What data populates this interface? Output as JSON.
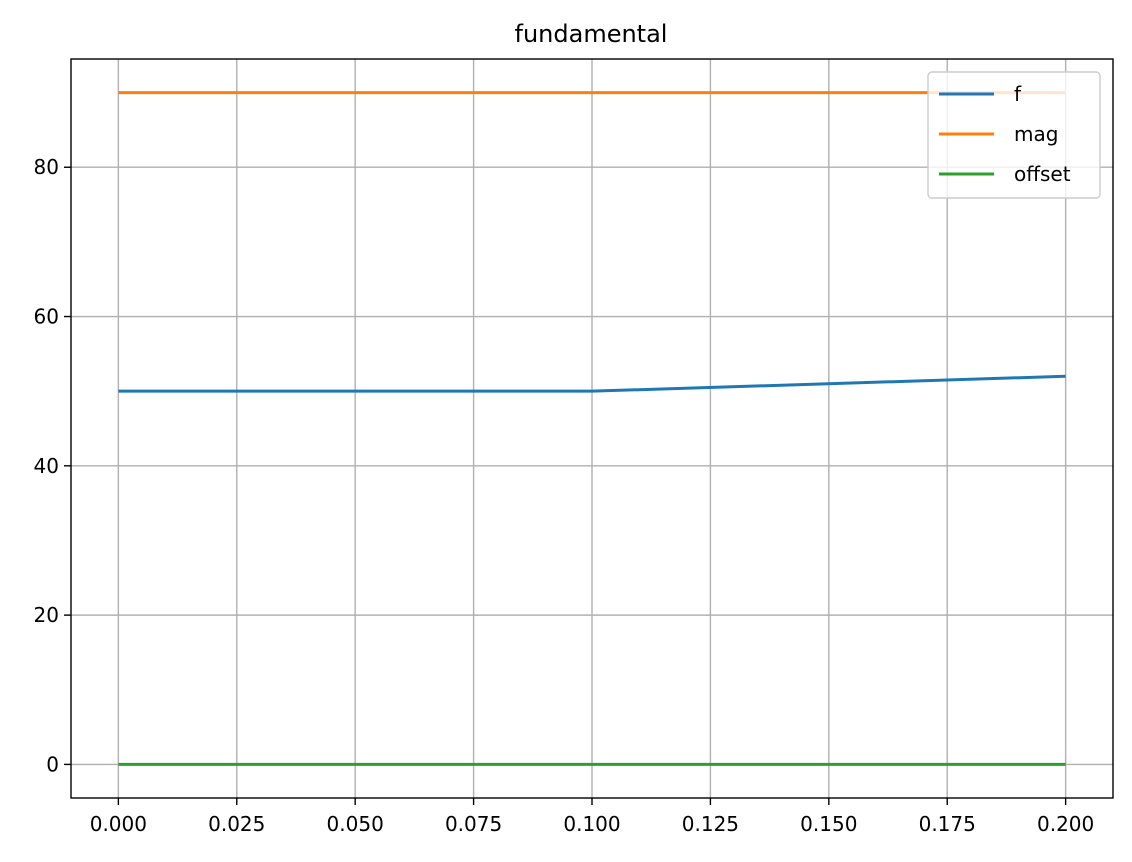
{
  "chart_data": {
    "type": "line",
    "title": "fundamental",
    "xlabel": "",
    "ylabel": "",
    "x": [
      0.0,
      0.1,
      0.2
    ],
    "xlim": [
      -0.01,
      0.21
    ],
    "ylim": [
      -4.5,
      94.5
    ],
    "xticks": [
      "0.000",
      "0.025",
      "0.050",
      "0.075",
      "0.100",
      "0.125",
      "0.150",
      "0.175",
      "0.200"
    ],
    "yticks": [
      "0",
      "20",
      "40",
      "60",
      "80"
    ],
    "grid": true,
    "legend_position": "top-right",
    "series": [
      {
        "name": "f",
        "color": "#1f77b4",
        "values": [
          50,
          50,
          52
        ]
      },
      {
        "name": "mag",
        "color": "#ff7f0e",
        "values": [
          90,
          90,
          90
        ]
      },
      {
        "name": "offset",
        "color": "#2ca02c",
        "values": [
          0,
          0,
          0
        ]
      }
    ]
  }
}
